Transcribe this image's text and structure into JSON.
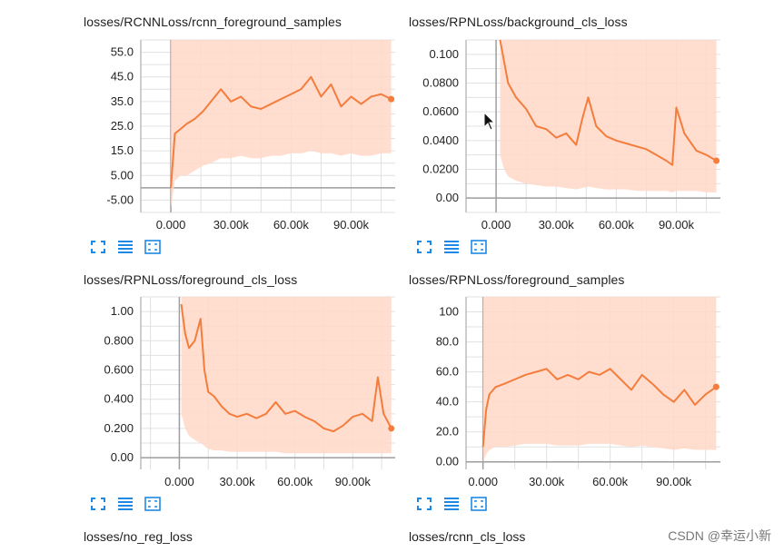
{
  "colors": {
    "line": "#f47c3c",
    "band": "#ffd8c8",
    "grid": "#e0e0e0",
    "axis": "#9e9e9e",
    "icon": "#1e88e5"
  },
  "icons": [
    "expand-icon",
    "toggle-lines-icon",
    "fit-domain-icon"
  ],
  "bottom_titles": [
    "losses/no_reg_loss",
    "losses/rcnn_cls_loss"
  ],
  "watermark": "CSDN @幸运小新",
  "chart_data": [
    {
      "type": "line",
      "title": "losses/RCNNLoss/rcnn_foreground_samples",
      "xlim": [
        -15000,
        112000
      ],
      "ylim": [
        -10,
        60
      ],
      "x_ticks": [
        0,
        30000,
        60000,
        90000
      ],
      "x_tick_labels": [
        "0.000",
        "30.00k",
        "60.00k",
        "90.00k"
      ],
      "y_ticks": [
        -5,
        5,
        15,
        25,
        35,
        45,
        55
      ],
      "y_tick_labels": [
        "-5.00",
        "5.00",
        "15.0",
        "25.0",
        "35.0",
        "45.0",
        "55.0"
      ],
      "grid": true,
      "series": [
        {
          "x": [
            0,
            2000,
            5000,
            8000,
            12000,
            16000,
            20000,
            25000,
            30000,
            35000,
            40000,
            45000,
            50000,
            55000,
            60000,
            65000,
            70000,
            75000,
            80000,
            85000,
            90000,
            95000,
            100000,
            105000,
            110000
          ],
          "y": [
            0,
            22,
            24,
            26,
            28,
            31,
            35,
            40,
            35,
            37,
            33,
            32,
            34,
            36,
            38,
            40,
            45,
            37,
            42,
            33,
            37,
            34,
            37,
            38,
            36
          ],
          "band_low": [
            -8,
            3,
            5,
            5,
            7,
            9,
            10,
            12,
            12,
            13,
            12,
            12,
            13,
            13,
            14,
            14,
            15,
            14,
            14,
            13,
            14,
            13,
            13,
            14,
            14
          ],
          "band_high": [
            60,
            60,
            60,
            60,
            60,
            60,
            60,
            60,
            60,
            60,
            60,
            60,
            60,
            60,
            60,
            60,
            60,
            60,
            60,
            60,
            60,
            60,
            60,
            60,
            60
          ]
        }
      ]
    },
    {
      "type": "line",
      "title": "losses/RPNLoss/background_cls_loss",
      "xlim": [
        -15000,
        112000
      ],
      "ylim": [
        -0.01,
        0.11
      ],
      "x_ticks": [
        0,
        30000,
        60000,
        90000
      ],
      "x_tick_labels": [
        "0.000",
        "30.00k",
        "60.00k",
        "90.00k"
      ],
      "y_ticks": [
        0,
        0.02,
        0.04,
        0.06,
        0.08,
        0.1
      ],
      "y_tick_labels": [
        "0.00",
        "0.0200",
        "0.0400",
        "0.0600",
        "0.0800",
        "0.100"
      ],
      "grid": true,
      "series": [
        {
          "x": [
            2000,
            4000,
            6000,
            10000,
            15000,
            20000,
            25000,
            30000,
            35000,
            40000,
            43000,
            46000,
            50000,
            55000,
            60000,
            65000,
            70000,
            75000,
            80000,
            85000,
            88000,
            90000,
            94000,
            100000,
            105000,
            110000
          ],
          "y": [
            0.11,
            0.095,
            0.08,
            0.07,
            0.062,
            0.05,
            0.048,
            0.042,
            0.045,
            0.037,
            0.055,
            0.07,
            0.05,
            0.043,
            0.04,
            0.038,
            0.036,
            0.034,
            0.03,
            0.026,
            0.023,
            0.063,
            0.045,
            0.033,
            0.03,
            0.026
          ],
          "band_low": [
            0.03,
            0.02,
            0.015,
            0.012,
            0.01,
            0.009,
            0.008,
            0.008,
            0.007,
            0.006,
            0.007,
            0.008,
            0.007,
            0.006,
            0.006,
            0.006,
            0.005,
            0.005,
            0.005,
            0.005,
            0.004,
            0.005,
            0.005,
            0.005,
            0.004,
            0.004
          ],
          "band_high": [
            0.11,
            0.11,
            0.11,
            0.11,
            0.11,
            0.11,
            0.11,
            0.11,
            0.11,
            0.11,
            0.11,
            0.11,
            0.11,
            0.11,
            0.11,
            0.11,
            0.11,
            0.11,
            0.11,
            0.11,
            0.11,
            0.11,
            0.11,
            0.11,
            0.11,
            0.11
          ]
        }
      ]
    },
    {
      "type": "line",
      "title": "losses/RPNLoss/foreground_cls_loss",
      "xlim": [
        -20000,
        112000
      ],
      "ylim": [
        -0.08,
        1.1
      ],
      "x_ticks": [
        0,
        30000,
        60000,
        90000
      ],
      "x_tick_labels": [
        "0.000",
        "30.00k",
        "60.00k",
        "90.00k"
      ],
      "y_ticks": [
        0,
        0.2,
        0.4,
        0.6,
        0.8,
        1.0
      ],
      "y_tick_labels": [
        "0.00",
        "0.200",
        "0.400",
        "0.600",
        "0.800",
        "1.00"
      ],
      "grid": true,
      "series": [
        {
          "x": [
            1000,
            3000,
            5000,
            8000,
            11000,
            13000,
            15000,
            18000,
            22000,
            26000,
            30000,
            35000,
            40000,
            45000,
            50000,
            55000,
            60000,
            65000,
            70000,
            75000,
            80000,
            85000,
            90000,
            95000,
            100000,
            103000,
            106000,
            110000
          ],
          "y": [
            1.05,
            0.85,
            0.75,
            0.8,
            0.95,
            0.6,
            0.45,
            0.42,
            0.35,
            0.3,
            0.28,
            0.3,
            0.27,
            0.3,
            0.38,
            0.3,
            0.32,
            0.28,
            0.25,
            0.2,
            0.18,
            0.22,
            0.28,
            0.3,
            0.25,
            0.55,
            0.3,
            0.2
          ],
          "band_low": [
            0.3,
            0.2,
            0.15,
            0.12,
            0.1,
            0.08,
            0.06,
            0.05,
            0.05,
            0.04,
            0.04,
            0.04,
            0.04,
            0.04,
            0.04,
            0.03,
            0.03,
            0.03,
            0.03,
            0.03,
            0.03,
            0.03,
            0.03,
            0.03,
            0.03,
            0.03,
            0.03,
            0.03
          ],
          "band_high": [
            1.1,
            1.1,
            1.1,
            1.1,
            1.1,
            1.1,
            1.1,
            1.1,
            1.1,
            1.1,
            1.1,
            1.1,
            1.1,
            1.1,
            1.1,
            1.1,
            1.1,
            1.1,
            1.1,
            1.1,
            1.1,
            1.1,
            1.1,
            1.1,
            1.1,
            1.1,
            1.1,
            1.1
          ]
        }
      ]
    },
    {
      "type": "line",
      "title": "losses/RPNLoss/foreground_samples",
      "xlim": [
        -8000,
        112000
      ],
      "ylim": [
        -5,
        110
      ],
      "x_ticks": [
        0,
        30000,
        60000,
        90000
      ],
      "x_tick_labels": [
        "0.000",
        "30.00k",
        "60.00k",
        "90.00k"
      ],
      "y_ticks": [
        0,
        20,
        40,
        60,
        80,
        100
      ],
      "y_tick_labels": [
        "0.00",
        "20.0",
        "40.0",
        "60.0",
        "80.0",
        "100"
      ],
      "grid": true,
      "series": [
        {
          "x": [
            0,
            1500,
            3000,
            6000,
            10000,
            15000,
            20000,
            25000,
            30000,
            35000,
            40000,
            45000,
            50000,
            55000,
            60000,
            65000,
            70000,
            75000,
            80000,
            85000,
            90000,
            95000,
            100000,
            105000,
            110000
          ],
          "y": [
            10,
            35,
            45,
            50,
            52,
            55,
            58,
            60,
            62,
            55,
            58,
            55,
            60,
            58,
            62,
            55,
            48,
            58,
            52,
            45,
            40,
            48,
            38,
            45,
            50
          ],
          "band_low": [
            0,
            5,
            8,
            10,
            10,
            11,
            12,
            12,
            12,
            11,
            11,
            11,
            12,
            12,
            12,
            11,
            10,
            11,
            10,
            9,
            8,
            9,
            8,
            8,
            8
          ],
          "band_high": [
            110,
            110,
            110,
            110,
            110,
            110,
            110,
            110,
            110,
            110,
            110,
            110,
            110,
            110,
            110,
            110,
            110,
            110,
            110,
            110,
            110,
            110,
            110,
            110,
            110
          ]
        }
      ]
    }
  ]
}
